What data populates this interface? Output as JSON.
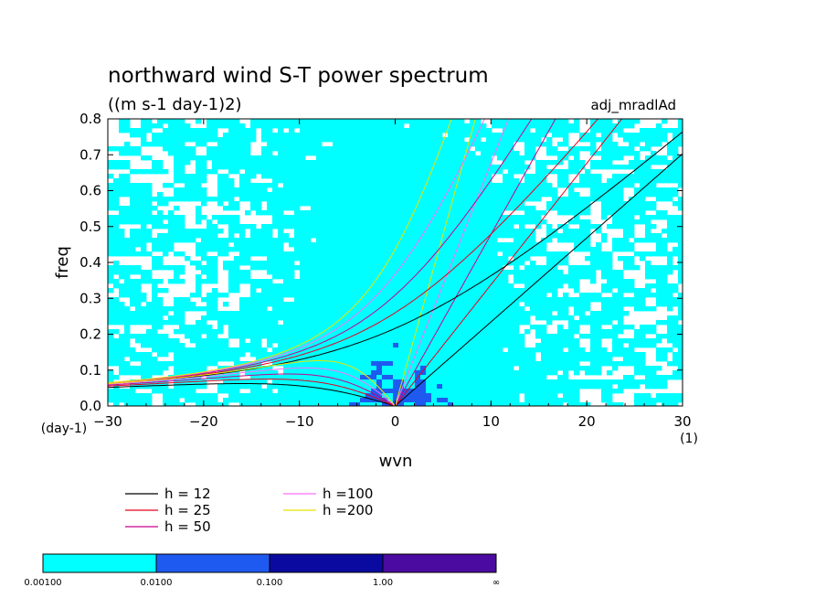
{
  "chart_data": {
    "type": "heatmap",
    "title": "northward wind S-T power spectrum",
    "units": "((m s-1 day-1)2)",
    "tag": "adj_mradlAd",
    "xlabel": "wvn",
    "ylabel": "freq",
    "x_unit": "(1)",
    "y_unit": "(day-1)",
    "xlim": [
      -30,
      30
    ],
    "ylim": [
      0,
      0.8
    ],
    "xticks": [
      "−30",
      "−20",
      "−10",
      "0",
      "10",
      "20",
      "30"
    ],
    "yticks": [
      "0.0",
      "0.1",
      "0.2",
      "0.3",
      "0.4",
      "0.5",
      "0.6",
      "0.7",
      "0.8"
    ],
    "colorbar": {
      "labels": [
        "0.00100",
        "0.0100",
        "0.100",
        "1.00",
        "∞"
      ],
      "colors": [
        "#00ffff",
        "#1e5af0",
        "#0a0aa0",
        "#4b0aa0"
      ]
    },
    "legend": {
      "columns": [
        [
          {
            "label": "h = 12",
            "color": "#000000"
          },
          {
            "label": "h = 25",
            "color": "#e6001e"
          },
          {
            "label": "h = 50",
            "color": "#c8008c"
          }
        ],
        [
          {
            "label": "h =100",
            "color": "#ff6eff"
          },
          {
            "label": "h =200",
            "color": "#e6e600"
          }
        ]
      ]
    },
    "curves": [
      {
        "kind": "kelvin",
        "h": 12,
        "color": "#000000"
      },
      {
        "kind": "kelvin",
        "h": 25,
        "color": "#e6001e"
      },
      {
        "kind": "kelvin",
        "h": 50,
        "color": "#c8008c"
      },
      {
        "kind": "kelvin",
        "h": 100,
        "color": "#ff6eff"
      },
      {
        "kind": "kelvin",
        "h": 200,
        "color": "#e6e600"
      },
      {
        "kind": "rossby-gravity",
        "h": 12,
        "color": "#000000"
      },
      {
        "kind": "rossby-gravity",
        "h": 25,
        "color": "#e6001e"
      },
      {
        "kind": "rossby-gravity",
        "h": 50,
        "color": "#c8008c"
      },
      {
        "kind": "rossby-gravity",
        "h": 100,
        "color": "#ff6eff"
      },
      {
        "kind": "rossby-gravity",
        "h": 200,
        "color": "#e6e600"
      },
      {
        "kind": "rossby",
        "h": 12,
        "color": "#000000"
      },
      {
        "kind": "rossby",
        "h": 25,
        "color": "#e6001e"
      },
      {
        "kind": "rossby",
        "h": 50,
        "color": "#c8008c"
      },
      {
        "kind": "rossby",
        "h": 100,
        "color": "#ff6eff"
      },
      {
        "kind": "rossby",
        "h": 200,
        "color": "#e6e600"
      }
    ]
  }
}
